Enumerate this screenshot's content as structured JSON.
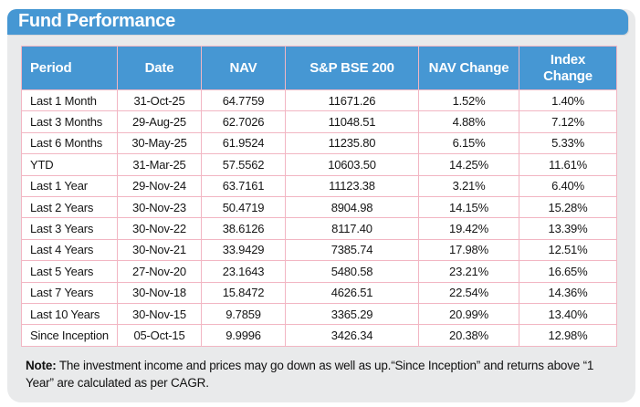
{
  "panel": {
    "title": "Fund Performance"
  },
  "table": {
    "columns": [
      "Period",
      "Date",
      "NAV",
      "S&P BSE 200",
      "NAV Change",
      "Index\nChange"
    ],
    "rows": [
      [
        "Last 1 Month",
        "31-Oct-25",
        "64.7759",
        "11671.26",
        "1.52%",
        "1.40%"
      ],
      [
        "Last 3 Months",
        "29-Aug-25",
        "62.7026",
        "11048.51",
        "4.88%",
        "7.12%"
      ],
      [
        "Last 6 Months",
        "30-May-25",
        "61.9524",
        "11235.80",
        "6.15%",
        "5.33%"
      ],
      [
        "YTD",
        "31-Mar-25",
        "57.5562",
        "10603.50",
        "14.25%",
        "11.61%"
      ],
      [
        "Last 1 Year",
        "29-Nov-24",
        "63.7161",
        "11123.38",
        "3.21%",
        "6.40%"
      ],
      [
        "Last 2 Years",
        "30-Nov-23",
        "50.4719",
        "8904.98",
        "14.15%",
        "15.28%"
      ],
      [
        "Last 3 Years",
        "30-Nov-22",
        "38.6126",
        "8117.40",
        "19.42%",
        "13.39%"
      ],
      [
        "Last 4 Years",
        "30-Nov-21",
        "33.9429",
        "7385.74",
        "17.98%",
        "12.51%"
      ],
      [
        "Last 5 Years",
        "27-Nov-20",
        "23.1643",
        "5480.58",
        "23.21%",
        "16.65%"
      ],
      [
        "Last 7 Years",
        "30-Nov-18",
        "15.8472",
        "4626.51",
        "22.54%",
        "14.36%"
      ],
      [
        "Last 10 Years",
        "30-Nov-15",
        "9.7859",
        "3365.29",
        "20.99%",
        "13.40%"
      ],
      [
        "Since Inception",
        "05-Oct-15",
        "9.9996",
        "3426.34",
        "20.38%",
        "12.98%"
      ]
    ]
  },
  "note": {
    "label": "Note:",
    "text": "The investment income and prices may go down as well as up.“Since Inception” and returns above “1 Year” are calculated as per CAGR."
  },
  "colors": {
    "accent_blue": "#4697d3",
    "panel_gray": "#e9eaeb",
    "border_pink": "#f2b6c3"
  }
}
